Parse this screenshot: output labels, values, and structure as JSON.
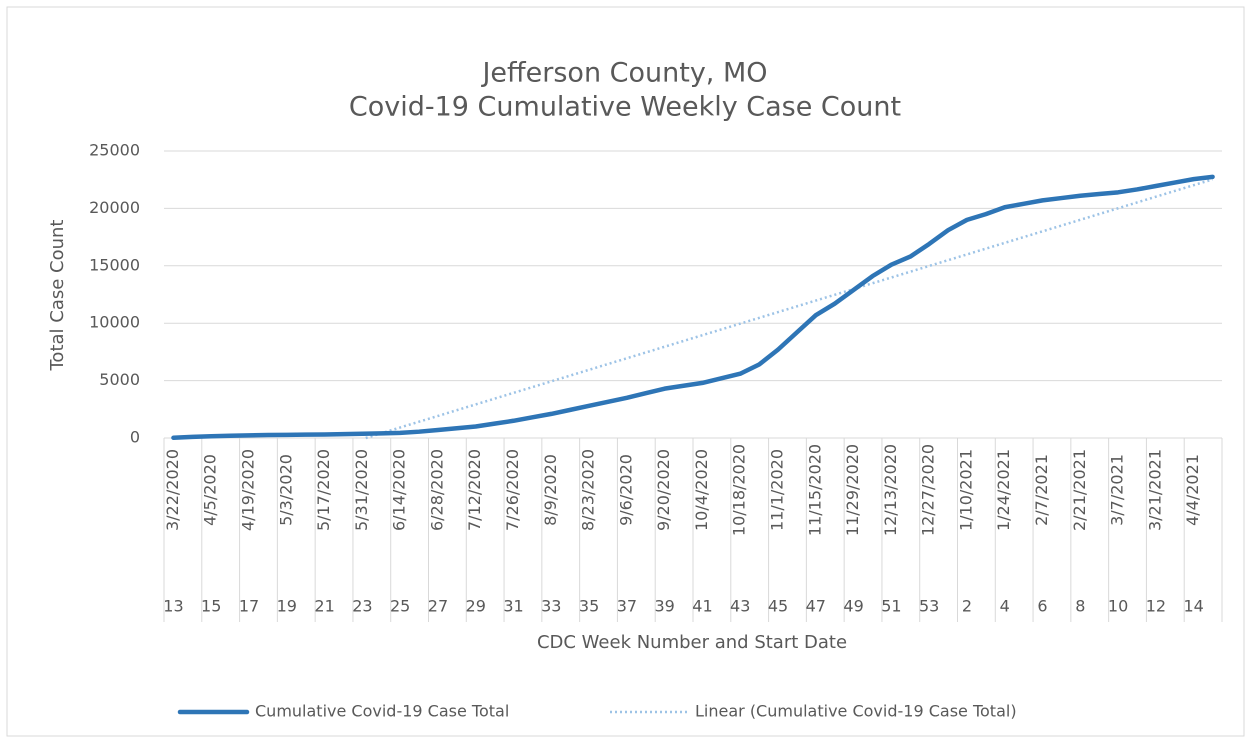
{
  "chart_data": {
    "type": "line",
    "title": "Jefferson County, MO",
    "subtitle": "Covid-19 Cumulative Weekly Case Count",
    "y_label": "Total Case Count",
    "x_label": "CDC Week Number and Start Date",
    "categories": [
      "13",
      null,
      "15",
      null,
      "17",
      null,
      "19",
      null,
      "21",
      null,
      "23",
      null,
      "25",
      null,
      "27",
      null,
      "29",
      null,
      "31",
      null,
      "33",
      null,
      "35",
      null,
      "37",
      null,
      "39",
      null,
      "41",
      null,
      "43",
      null,
      "45",
      null,
      "47",
      null,
      "49",
      null,
      "51",
      null,
      "53",
      null,
      "2",
      null,
      "4",
      null,
      "6",
      null,
      "8",
      null,
      "10",
      null,
      "12",
      null,
      "14",
      null
    ],
    "dates": [
      "3/22/2020",
      null,
      "4/5/2020",
      null,
      "4/19/2020",
      null,
      "5/3/2020",
      null,
      "5/17/2020",
      null,
      "5/31/2020",
      null,
      "6/14/2020",
      null,
      "6/28/2020",
      null,
      "7/12/2020",
      null,
      "7/26/2020",
      null,
      "8/9/2020",
      null,
      "8/23/2020",
      null,
      "9/6/2020",
      null,
      "9/20/2020",
      null,
      "10/4/2020",
      null,
      "10/18/2020",
      null,
      "11/1/2020",
      null,
      "11/15/2020",
      null,
      "11/29/2020",
      null,
      "12/13/2020",
      null,
      "12/27/2020",
      null,
      "1/10/2021",
      null,
      "1/24/2021",
      null,
      "2/7/2021",
      null,
      "2/21/2021",
      null,
      "3/7/2021",
      null,
      "3/21/2021",
      null,
      "4/4/2021",
      null
    ],
    "series": [
      {
        "name": "Cumulative Covid-19 Case Total",
        "color": "#2e75b6",
        "values": [
          20,
          100,
          150,
          200,
          230,
          260,
          270,
          290,
          310,
          340,
          370,
          400,
          450,
          550,
          700,
          850,
          1000,
          1250,
          1500,
          1800,
          2100,
          2450,
          2800,
          3150,
          3500,
          3900,
          4300,
          4550,
          4800,
          5200,
          5600,
          6400,
          7700,
          9200,
          10700,
          11700,
          12900,
          14100,
          15100,
          15800,
          16900,
          18100,
          19000,
          19500,
          20100,
          20400,
          20700,
          20900,
          21100,
          21250,
          21400,
          21650,
          21950,
          22250,
          22550,
          22750
        ]
      }
    ],
    "trendline": {
      "name": "Linear (Cumulative Covid-19 Case Total)",
      "color": "#9dc3e6"
    },
    "ylim": [
      0,
      25000
    ],
    "yticks": [
      0,
      5000,
      10000,
      15000,
      20000,
      25000
    ],
    "grid": true
  }
}
